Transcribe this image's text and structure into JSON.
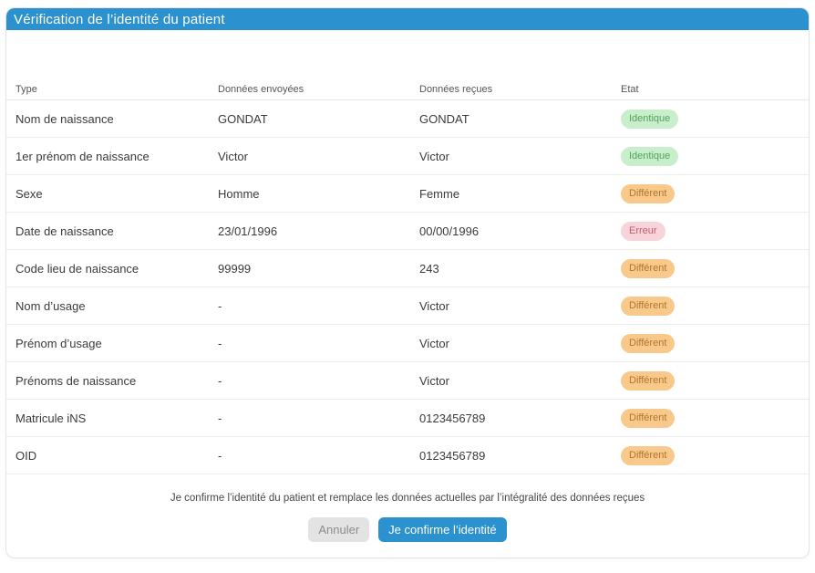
{
  "header": {
    "title": "Vérification de l’identité du patient"
  },
  "table": {
    "columns": [
      "Type",
      "Données envoyées",
      "Données reçues",
      "Etat"
    ],
    "rows": [
      {
        "type": "Nom de naissance",
        "sent": "GONDAT",
        "received": "GONDAT",
        "status": "Identique",
        "status_kind": "identical"
      },
      {
        "type": "1er prénom de naissance",
        "sent": "Victor",
        "received": "Victor",
        "status": "Identique",
        "status_kind": "identical"
      },
      {
        "type": "Sexe",
        "sent": "Homme",
        "received": "Femme",
        "status": "Différent",
        "status_kind": "different"
      },
      {
        "type": "Date de naissance",
        "sent": "23/01/1996",
        "received": "00/00/1996",
        "status": "Erreur",
        "status_kind": "error"
      },
      {
        "type": "Code lieu de naissance",
        "sent": "99999",
        "received": "243",
        "status": "Différent",
        "status_kind": "different"
      },
      {
        "type": "Nom d’usage",
        "sent": "-",
        "received": "Victor",
        "status": "Différent",
        "status_kind": "different"
      },
      {
        "type": "Prénom d’usage",
        "sent": "-",
        "received": "Victor",
        "status": "Différent",
        "status_kind": "different"
      },
      {
        "type": "Prénoms de naissance",
        "sent": "-",
        "received": "Victor",
        "status": "Différent",
        "status_kind": "different"
      },
      {
        "type": "Matricule iNS",
        "sent": "-",
        "received": "0123456789",
        "status": "Différent",
        "status_kind": "different"
      },
      {
        "type": "OID",
        "sent": "-",
        "received": "0123456789",
        "status": "Différent",
        "status_kind": "different"
      }
    ]
  },
  "footer": {
    "confirm_text": "Je confirme l’identité du patient et remplace les données actuelles par l’intégralité des données reçues",
    "cancel_label": "Annuler",
    "confirm_label": "Je confirme l’identité"
  },
  "colors": {
    "accent_blue": "#2b91cf",
    "badge_identical_bg": "#c8eecb",
    "badge_identical_text": "#54a25e",
    "badge_different_bg": "#f9c88b",
    "badge_different_text": "#b0762f",
    "badge_error_bg": "#f7d4d9",
    "badge_error_text": "#c45a70"
  }
}
